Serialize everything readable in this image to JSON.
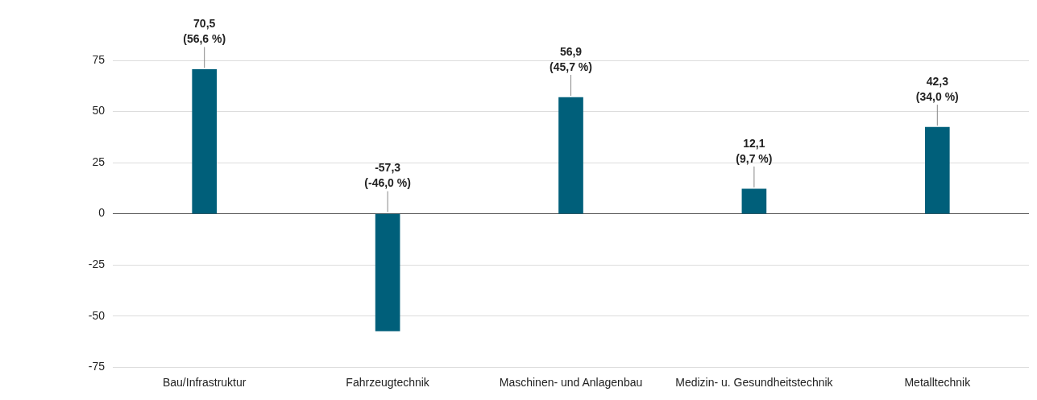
{
  "chart_data": {
    "type": "bar",
    "categories": [
      "Bau/Infrastruktur",
      "Fahrzeugtechnik",
      "Maschinen- und Anlagenbau",
      "Medizin- u. Gesundheitstechnik",
      "Metalltechnik"
    ],
    "values": [
      70.5,
      -57.3,
      56.9,
      12.1,
      42.3
    ],
    "value_labels": [
      "70,5\n(56,6 %)",
      "-57,3\n(-46,0 %)",
      "56,9\n(45,7 %)",
      "12,1\n(9,7 %)",
      "42,3\n(34,0 %)"
    ],
    "color": "#005f7a",
    "ylim": [
      -75,
      75
    ],
    "yticks": [
      -75,
      -50,
      -25,
      0,
      25,
      50,
      75
    ],
    "grid": "y",
    "legend": false
  }
}
